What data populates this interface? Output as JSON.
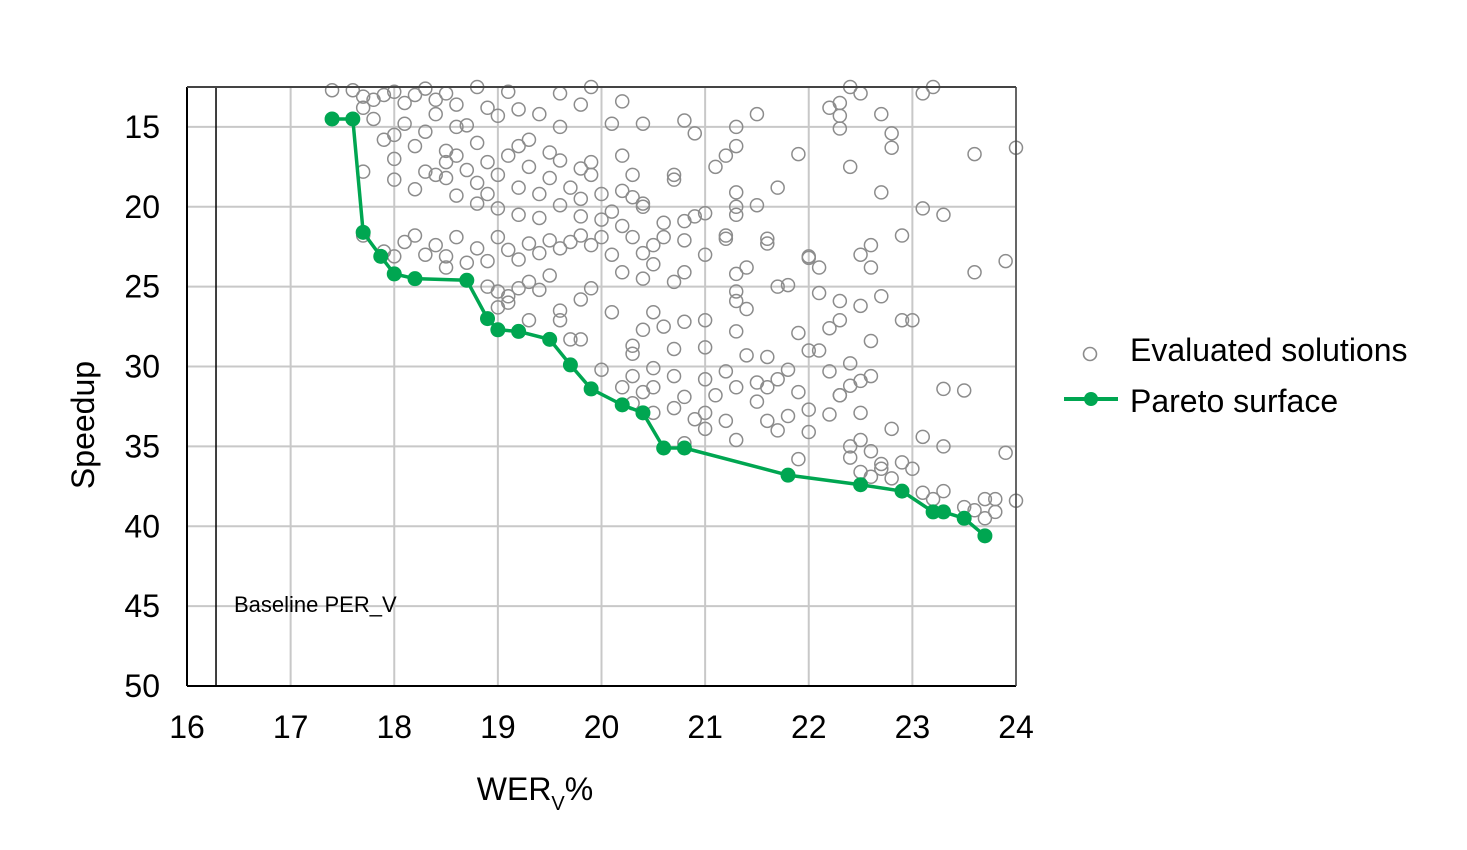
{
  "chart_data": {
    "type": "scatter",
    "xlabel_main": "WER",
    "xlabel_sub": "V",
    "xlabel_suffix": "%",
    "ylabel": "Speedup",
    "xlim": [
      16,
      24
    ],
    "ylim": [
      12.5,
      50
    ],
    "y_inverted": true,
    "grid": true,
    "legend_position": "right",
    "x_ticks": [
      16,
      17,
      18,
      19,
      20,
      21,
      22,
      23,
      24
    ],
    "y_ticks": [
      15,
      20,
      25,
      30,
      35,
      40,
      45,
      50
    ],
    "annotation": {
      "text": "Baseline PER_V",
      "x": 16.28
    },
    "series": [
      {
        "name": "Evaluated solutions",
        "marker": "open-circle",
        "color": "#8c8c8c",
        "points": [
          [
            17.4,
            12.7
          ],
          [
            17.6,
            12.7
          ],
          [
            17.7,
            13.1
          ],
          [
            17.8,
            13.3
          ],
          [
            17.9,
            13.0
          ],
          [
            18.0,
            12.8
          ],
          [
            18.1,
            13.5
          ],
          [
            18.2,
            13.0
          ],
          [
            18.3,
            12.6
          ],
          [
            18.4,
            13.3
          ],
          [
            18.5,
            12.9
          ],
          [
            18.6,
            13.6
          ],
          [
            18.8,
            12.5
          ],
          [
            18.9,
            13.8
          ],
          [
            19.1,
            12.8
          ],
          [
            19.2,
            13.9
          ],
          [
            19.4,
            14.2
          ],
          [
            19.6,
            12.9
          ],
          [
            19.8,
            13.6
          ],
          [
            19.9,
            12.5
          ],
          [
            20.2,
            13.4
          ],
          [
            20.1,
            14.8
          ],
          [
            20.4,
            14.8
          ],
          [
            20.8,
            14.6
          ],
          [
            20.9,
            15.4
          ],
          [
            21.5,
            14.2
          ],
          [
            22.2,
            13.8
          ],
          [
            22.3,
            13.5
          ],
          [
            22.3,
            14.3
          ],
          [
            22.3,
            15.1
          ],
          [
            22.4,
            12.5
          ],
          [
            22.5,
            12.9
          ],
          [
            22.7,
            14.2
          ],
          [
            22.8,
            15.4
          ],
          [
            22.8,
            16.3
          ],
          [
            23.1,
            12.9
          ],
          [
            23.2,
            12.5
          ],
          [
            17.7,
            13.8
          ],
          [
            17.8,
            14.5
          ],
          [
            17.9,
            15.8
          ],
          [
            18.0,
            15.5
          ],
          [
            18.0,
            17.0
          ],
          [
            18.1,
            14.8
          ],
          [
            18.2,
            16.2
          ],
          [
            18.3,
            15.3
          ],
          [
            18.3,
            17.8
          ],
          [
            18.4,
            14.2
          ],
          [
            18.5,
            16.5
          ],
          [
            18.5,
            18.2
          ],
          [
            18.5,
            17.2
          ],
          [
            18.6,
            15.0
          ],
          [
            18.6,
            16.8
          ],
          [
            18.7,
            17.7
          ],
          [
            18.7,
            14.9
          ],
          [
            18.8,
            16.0
          ],
          [
            18.8,
            18.5
          ],
          [
            18.9,
            17.2
          ],
          [
            18.9,
            19.2
          ],
          [
            19.0,
            18.0
          ],
          [
            19.0,
            14.3
          ],
          [
            19.1,
            16.8
          ],
          [
            19.2,
            16.2
          ],
          [
            19.2,
            18.8
          ],
          [
            19.3,
            17.5
          ],
          [
            19.3,
            15.8
          ],
          [
            19.4,
            19.2
          ],
          [
            19.5,
            16.6
          ],
          [
            19.5,
            18.2
          ],
          [
            19.6,
            17.1
          ],
          [
            19.6,
            15.0
          ],
          [
            19.7,
            18.8
          ],
          [
            19.8,
            17.6
          ],
          [
            19.8,
            19.5
          ],
          [
            19.9,
            18.0
          ],
          [
            19.9,
            17.2
          ],
          [
            20.0,
            19.2
          ],
          [
            20.1,
            20.3
          ],
          [
            20.2,
            16.8
          ],
          [
            20.2,
            19.0
          ],
          [
            20.3,
            18.0
          ],
          [
            20.4,
            19.8
          ],
          [
            20.7,
            18.0
          ],
          [
            20.7,
            18.3
          ],
          [
            21.1,
            17.5
          ],
          [
            21.2,
            16.8
          ],
          [
            21.3,
            15.0
          ],
          [
            21.3,
            16.2
          ],
          [
            21.7,
            18.8
          ],
          [
            21.9,
            16.7
          ],
          [
            22.4,
            17.5
          ],
          [
            22.7,
            19.1
          ],
          [
            23.6,
            16.7
          ],
          [
            24.0,
            16.3
          ],
          [
            17.7,
            17.8
          ],
          [
            18.0,
            18.3
          ],
          [
            18.2,
            18.9
          ],
          [
            18.4,
            18.0
          ],
          [
            18.6,
            19.3
          ],
          [
            18.8,
            19.8
          ],
          [
            19.0,
            20.1
          ],
          [
            19.2,
            20.5
          ],
          [
            19.4,
            20.7
          ],
          [
            19.6,
            19.9
          ],
          [
            19.8,
            20.6
          ],
          [
            20.0,
            20.8
          ],
          [
            20.2,
            21.2
          ],
          [
            20.3,
            19.4
          ],
          [
            20.4,
            20.0
          ],
          [
            20.6,
            21.0
          ],
          [
            20.8,
            20.9
          ],
          [
            20.9,
            20.6
          ],
          [
            21.0,
            20.4
          ],
          [
            21.2,
            21.8
          ],
          [
            21.3,
            20.0
          ],
          [
            21.3,
            20.5
          ],
          [
            21.3,
            19.1
          ],
          [
            21.5,
            19.9
          ],
          [
            23.1,
            20.1
          ],
          [
            23.3,
            20.5
          ],
          [
            17.7,
            21.8
          ],
          [
            17.9,
            22.8
          ],
          [
            18.0,
            23.1
          ],
          [
            18.1,
            22.2
          ],
          [
            18.2,
            21.8
          ],
          [
            18.3,
            23.0
          ],
          [
            18.4,
            22.4
          ],
          [
            18.5,
            23.1
          ],
          [
            18.6,
            21.9
          ],
          [
            18.7,
            23.5
          ],
          [
            18.8,
            22.6
          ],
          [
            18.9,
            23.4
          ],
          [
            19.0,
            21.9
          ],
          [
            19.1,
            22.7
          ],
          [
            19.2,
            23.3
          ],
          [
            19.3,
            22.3
          ],
          [
            19.4,
            22.9
          ],
          [
            19.5,
            22.1
          ],
          [
            19.6,
            22.6
          ],
          [
            19.7,
            22.2
          ],
          [
            19.8,
            21.8
          ],
          [
            19.9,
            22.4
          ],
          [
            20.0,
            21.9
          ],
          [
            20.1,
            23.0
          ],
          [
            20.3,
            21.9
          ],
          [
            20.4,
            22.9
          ],
          [
            20.5,
            22.4
          ],
          [
            20.6,
            21.9
          ],
          [
            20.8,
            22.1
          ],
          [
            21.0,
            23.0
          ],
          [
            21.2,
            22.0
          ],
          [
            21.3,
            24.2
          ],
          [
            21.4,
            23.8
          ],
          [
            21.6,
            22.0
          ],
          [
            21.6,
            22.3
          ],
          [
            22.0,
            23.1
          ],
          [
            22.1,
            23.8
          ],
          [
            22.5,
            23.0
          ],
          [
            22.6,
            22.4
          ],
          [
            22.6,
            23.8
          ],
          [
            22.9,
            21.8
          ],
          [
            23.6,
            24.1
          ],
          [
            23.9,
            23.4
          ],
          [
            18.5,
            23.8
          ],
          [
            18.7,
            24.6
          ],
          [
            18.9,
            25.0
          ],
          [
            19.0,
            25.3
          ],
          [
            19.1,
            25.6
          ],
          [
            19.2,
            25.1
          ],
          [
            19.3,
            24.7
          ],
          [
            19.4,
            25.2
          ],
          [
            19.5,
            24.3
          ],
          [
            19.6,
            26.5
          ],
          [
            19.8,
            25.8
          ],
          [
            19.9,
            25.1
          ],
          [
            20.1,
            26.6
          ],
          [
            20.2,
            24.1
          ],
          [
            20.4,
            24.5
          ],
          [
            20.5,
            23.6
          ],
          [
            20.5,
            26.6
          ],
          [
            20.7,
            24.7
          ],
          [
            20.8,
            24.1
          ],
          [
            21.3,
            25.3
          ],
          [
            21.3,
            25.9
          ],
          [
            21.4,
            26.4
          ],
          [
            21.7,
            25.0
          ],
          [
            21.8,
            24.9
          ],
          [
            22.0,
            23.2
          ],
          [
            22.1,
            25.4
          ],
          [
            22.3,
            25.9
          ],
          [
            22.5,
            26.2
          ],
          [
            22.7,
            25.6
          ],
          [
            22.9,
            27.1
          ],
          [
            23.0,
            27.1
          ],
          [
            18.9,
            27.0
          ],
          [
            19.0,
            26.3
          ],
          [
            19.1,
            26.0
          ],
          [
            19.3,
            27.1
          ],
          [
            19.6,
            27.1
          ],
          [
            19.7,
            28.3
          ],
          [
            19.8,
            28.3
          ],
          [
            20.3,
            28.7
          ],
          [
            20.3,
            29.2
          ],
          [
            20.4,
            27.7
          ],
          [
            20.6,
            27.5
          ],
          [
            20.7,
            28.9
          ],
          [
            20.8,
            27.2
          ],
          [
            21.0,
            27.1
          ],
          [
            21.0,
            28.8
          ],
          [
            21.3,
            27.8
          ],
          [
            21.4,
            29.3
          ],
          [
            21.6,
            29.4
          ],
          [
            21.9,
            27.9
          ],
          [
            22.0,
            29.0
          ],
          [
            22.1,
            29.0
          ],
          [
            22.2,
            27.6
          ],
          [
            22.3,
            27.1
          ],
          [
            22.4,
            29.8
          ],
          [
            22.6,
            28.4
          ],
          [
            20.0,
            30.2
          ],
          [
            20.2,
            31.3
          ],
          [
            20.3,
            30.6
          ],
          [
            20.4,
            31.6
          ],
          [
            20.5,
            31.3
          ],
          [
            20.5,
            30.1
          ],
          [
            20.7,
            30.6
          ],
          [
            20.8,
            31.9
          ],
          [
            21.0,
            30.8
          ],
          [
            21.1,
            31.8
          ],
          [
            21.2,
            30.3
          ],
          [
            21.3,
            31.3
          ],
          [
            21.5,
            31.0
          ],
          [
            21.6,
            31.3
          ],
          [
            21.7,
            30.8
          ],
          [
            21.8,
            30.2
          ],
          [
            21.9,
            31.6
          ],
          [
            22.2,
            30.3
          ],
          [
            22.3,
            31.8
          ],
          [
            22.4,
            31.2
          ],
          [
            22.5,
            30.9
          ],
          [
            22.6,
            30.6
          ],
          [
            23.3,
            31.4
          ],
          [
            23.5,
            31.5
          ],
          [
            20.3,
            32.3
          ],
          [
            20.5,
            32.9
          ],
          [
            20.7,
            32.6
          ],
          [
            20.9,
            33.3
          ],
          [
            21.0,
            32.9
          ],
          [
            21.0,
            33.9
          ],
          [
            21.2,
            33.4
          ],
          [
            21.3,
            34.6
          ],
          [
            21.5,
            32.2
          ],
          [
            21.6,
            33.4
          ],
          [
            21.7,
            34.0
          ],
          [
            21.8,
            33.1
          ],
          [
            22.0,
            32.7
          ],
          [
            22.0,
            34.1
          ],
          [
            22.2,
            33.0
          ],
          [
            22.3,
            31.8
          ],
          [
            22.4,
            35.0
          ],
          [
            22.5,
            32.9
          ],
          [
            22.5,
            34.6
          ],
          [
            22.6,
            35.3
          ],
          [
            22.7,
            36.1
          ],
          [
            22.8,
            33.9
          ],
          [
            23.1,
            34.4
          ],
          [
            23.3,
            35.0
          ],
          [
            20.8,
            34.8
          ],
          [
            21.9,
            35.8
          ],
          [
            22.4,
            35.7
          ],
          [
            22.5,
            36.6
          ],
          [
            22.6,
            36.9
          ],
          [
            22.7,
            36.4
          ],
          [
            22.8,
            37.0
          ],
          [
            22.9,
            36.0
          ],
          [
            23.0,
            36.4
          ],
          [
            23.1,
            37.9
          ],
          [
            23.2,
            38.3
          ],
          [
            23.3,
            37.8
          ],
          [
            23.5,
            38.8
          ],
          [
            23.6,
            39.0
          ],
          [
            23.7,
            38.3
          ],
          [
            23.8,
            38.3
          ],
          [
            23.8,
            39.1
          ],
          [
            23.7,
            39.5
          ],
          [
            23.9,
            35.4
          ],
          [
            24.0,
            38.4
          ]
        ]
      },
      {
        "name": "Pareto surface",
        "marker": "filled-circle-line",
        "color": "#00a651",
        "points": [
          [
            17.4,
            14.5
          ],
          [
            17.6,
            14.5
          ],
          [
            17.7,
            21.6
          ],
          [
            17.87,
            23.1
          ],
          [
            18.0,
            24.2
          ],
          [
            18.2,
            24.5
          ],
          [
            18.7,
            24.6
          ],
          [
            18.9,
            27.0
          ],
          [
            19.0,
            27.7
          ],
          [
            19.2,
            27.8
          ],
          [
            19.5,
            28.3
          ],
          [
            19.7,
            29.9
          ],
          [
            19.9,
            31.4
          ],
          [
            20.2,
            32.4
          ],
          [
            20.4,
            32.9
          ],
          [
            20.6,
            35.1
          ],
          [
            20.8,
            35.1
          ],
          [
            21.8,
            36.8
          ],
          [
            22.5,
            37.4
          ],
          [
            22.9,
            37.8
          ],
          [
            23.2,
            39.1
          ],
          [
            23.3,
            39.1
          ],
          [
            23.5,
            39.5
          ],
          [
            23.7,
            40.6
          ]
        ]
      }
    ]
  }
}
